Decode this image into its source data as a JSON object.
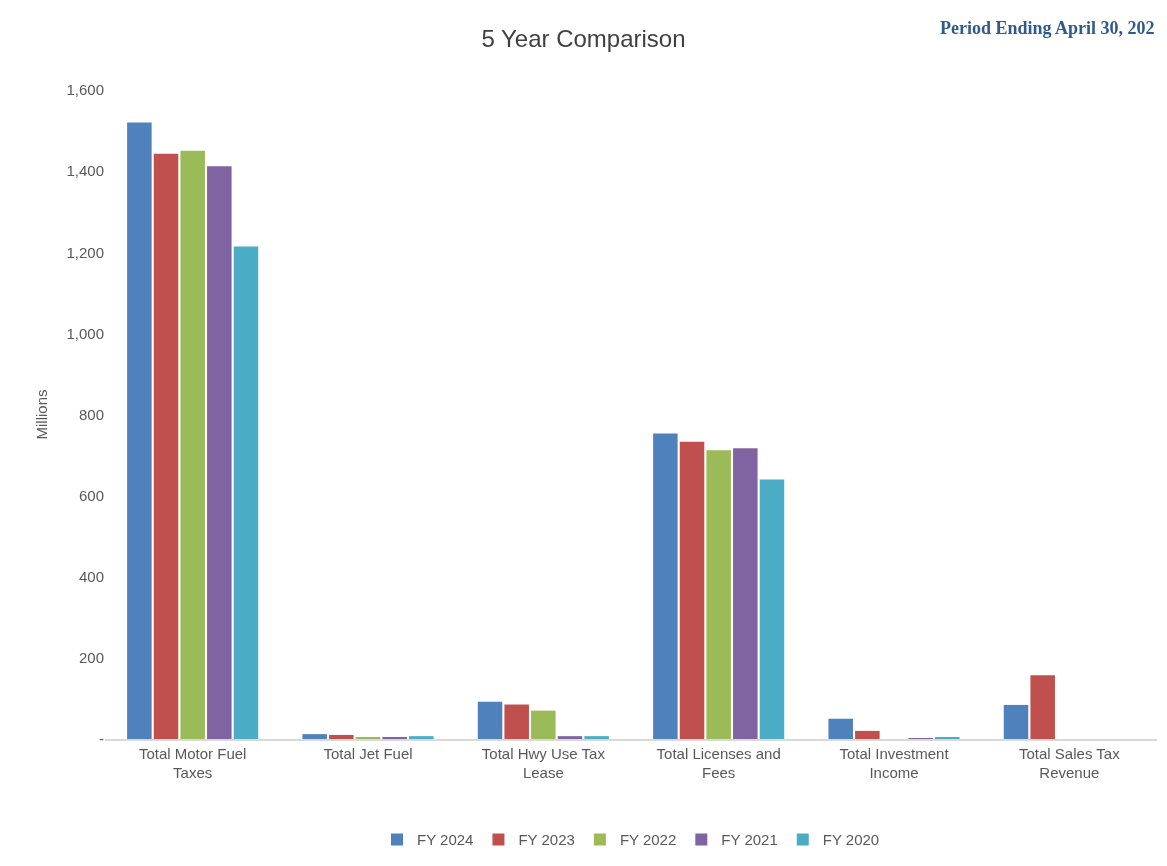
{
  "chart_data": {
    "type": "bar",
    "title": "5 Year Comparison",
    "ylabel": "Millions",
    "annotations": [
      "Period Ending April 30, 202"
    ],
    "categories": [
      "Total Motor Fuel Taxes",
      "Total Jet Fuel",
      "Total Hwy Use Tax Lease",
      "Total Licenses and Fees",
      "Total Investment Income",
      "Total Sales Tax Revenue"
    ],
    "series": [
      {
        "name": "FY 2024",
        "color": "#4f81bd",
        "values": [
          1520,
          12,
          92,
          753,
          50,
          84
        ]
      },
      {
        "name": "FY 2023",
        "color": "#c0504d",
        "values": [
          1443,
          10,
          85,
          733,
          20,
          157
        ]
      },
      {
        "name": "FY 2022",
        "color": "#9bbb59",
        "values": [
          1450,
          5,
          70,
          712,
          0,
          0
        ]
      },
      {
        "name": "FY 2021",
        "color": "#8064a2",
        "values": [
          1412,
          5,
          7,
          717,
          1,
          0
        ]
      },
      {
        "name": "FY 2020",
        "color": "#4bacc6",
        "values": [
          1214,
          7,
          7,
          640,
          3,
          0
        ]
      }
    ],
    "ylim": [
      0,
      1600
    ],
    "yticks": [
      {
        "value": 0,
        "label": "-"
      },
      {
        "value": 200,
        "label": "200"
      },
      {
        "value": 400,
        "label": "400"
      },
      {
        "value": 600,
        "label": "600"
      },
      {
        "value": 800,
        "label": "800"
      },
      {
        "value": 1000,
        "label": "1,000"
      },
      {
        "value": 1200,
        "label": "1,200"
      },
      {
        "value": 1400,
        "label": "1,400"
      },
      {
        "value": 1600,
        "label": "1,600"
      }
    ],
    "grid": false,
    "legend": "bottom"
  }
}
